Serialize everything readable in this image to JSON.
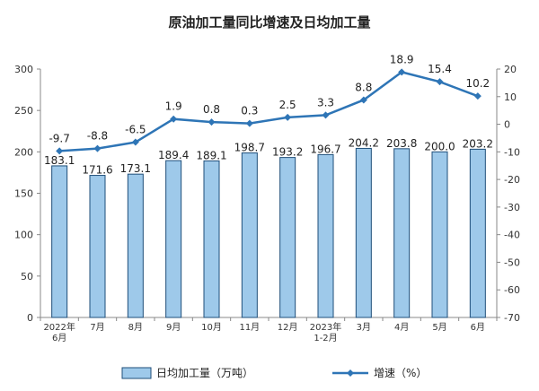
{
  "chart_data": {
    "type": "bar",
    "title": "原油加工量同比增速及日均加工量",
    "categories": [
      [
        "2022年",
        "6月"
      ],
      [
        "7月"
      ],
      [
        "8月"
      ],
      [
        "9月"
      ],
      [
        "10月"
      ],
      [
        "11月"
      ],
      [
        "12月"
      ],
      [
        "2023年",
        "1-2月"
      ],
      [
        "3月"
      ],
      [
        "4月"
      ],
      [
        "5月"
      ],
      [
        "6月"
      ]
    ],
    "series": [
      {
        "name": "日均加工量（万吨）",
        "type": "bar",
        "axis": "left",
        "values": [
          183.1,
          171.6,
          173.1,
          189.4,
          189.1,
          198.7,
          193.2,
          196.7,
          204.2,
          203.8,
          200.0,
          203.2
        ],
        "labels": [
          "183.1",
          "171.6",
          "173.1",
          "189.4",
          "189.1",
          "198.7",
          "193.2",
          "196.7",
          "204.2",
          "203.8",
          "200.0",
          "203.2"
        ],
        "color": "#9ec9ea",
        "edge_color": "#1f4e79"
      },
      {
        "name": "增速（%）",
        "type": "line",
        "axis": "right",
        "values": [
          -9.7,
          -8.8,
          -6.5,
          1.9,
          0.8,
          0.3,
          2.5,
          3.3,
          8.8,
          18.9,
          15.4,
          10.2
        ],
        "labels": [
          "-9.7",
          "-8.8",
          "-6.5",
          "1.9",
          "0.8",
          "0.3",
          "2.5",
          "3.3",
          "8.8",
          "18.9",
          "15.4",
          "10.2"
        ],
        "color": "#2e75b6"
      }
    ],
    "y_left": {
      "min": 0,
      "max": 300,
      "ticks": [
        0,
        50,
        100,
        150,
        200,
        250,
        300
      ]
    },
    "y_right": {
      "min": -70,
      "max": 20,
      "ticks": [
        20,
        10,
        0,
        -10,
        -20,
        -30,
        -40,
        -50,
        -60,
        -70
      ]
    },
    "grid": false,
    "legend": "bottom"
  }
}
